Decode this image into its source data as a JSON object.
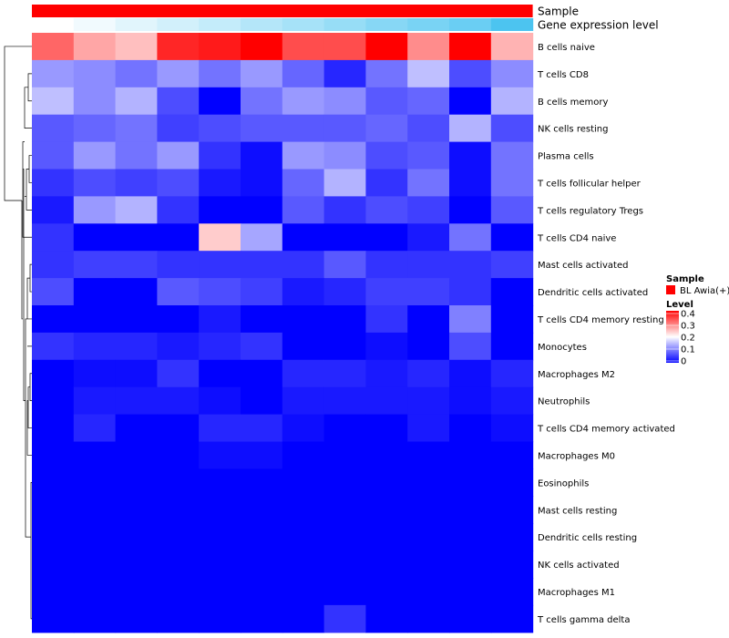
{
  "chart_data": {
    "type": "heatmap",
    "annotations": [
      {
        "label": "Sample",
        "color": "#ff0000"
      },
      {
        "label": "Gene expression level",
        "gradient_from": "#ffffff",
        "gradient_to": "#4cc4f0"
      }
    ],
    "legend": {
      "placement": "right",
      "sample_title": "Sample",
      "sample_entry": "BL Awia(+)",
      "sample_color": "#ff0000",
      "level_title": "Level",
      "level_ticks": [
        "0.4",
        "0.3",
        "0.2",
        "0.1",
        "0"
      ],
      "level_tick_values": [
        0.4,
        0.3,
        0.2,
        0.1,
        0
      ],
      "range": [
        0,
        0.4
      ]
    },
    "colors": {
      "low": "#0000ff",
      "mid": "#ffffff",
      "high": "#ff0000"
    },
    "rows": [
      "B cells naive",
      "T cells CD8",
      "B cells memory",
      "NK cells resting",
      "Plasma cells",
      "T cells follicular helper",
      "T cells regulatory  Tregs",
      "T cells CD4 naive",
      "Mast cells activated",
      "Dendritic cells activated",
      "T cells CD4 memory resting",
      "Monocytes",
      "Macrophages M2",
      "Neutrophils",
      "T cells CD4 memory activated",
      "Macrophages M0",
      "Eosinophils",
      "Mast cells resting",
      "Dendritic cells resting",
      "NK cells activated",
      "Macrophages M1",
      "T cells gamma delta"
    ],
    "values": [
      [
        0.32,
        0.27,
        0.25,
        0.37,
        0.38,
        0.4,
        0.34,
        0.34,
        0.4,
        0.29,
        0.4,
        0.26
      ],
      [
        0.12,
        0.11,
        0.09,
        0.12,
        0.09,
        0.12,
        0.08,
        0.03,
        0.09,
        0.15,
        0.06,
        0.11
      ],
      [
        0.15,
        0.11,
        0.14,
        0.06,
        0.0,
        0.09,
        0.12,
        0.11,
        0.07,
        0.08,
        0.0,
        0.14
      ],
      [
        0.07,
        0.08,
        0.09,
        0.05,
        0.06,
        0.07,
        0.07,
        0.07,
        0.08,
        0.06,
        0.14,
        0.06
      ],
      [
        0.07,
        0.12,
        0.09,
        0.12,
        0.04,
        0.01,
        0.12,
        0.11,
        0.06,
        0.07,
        0.01,
        0.09
      ],
      [
        0.04,
        0.06,
        0.05,
        0.06,
        0.02,
        0.01,
        0.08,
        0.14,
        0.04,
        0.09,
        0.01,
        0.09
      ],
      [
        0.02,
        0.12,
        0.14,
        0.04,
        0.0,
        0.0,
        0.07,
        0.04,
        0.06,
        0.05,
        0.0,
        0.07
      ],
      [
        0.04,
        0.0,
        0.0,
        0.0,
        0.24,
        0.13,
        0.0,
        0.0,
        0.0,
        0.02,
        0.09,
        0.0
      ],
      [
        0.04,
        0.05,
        0.05,
        0.04,
        0.04,
        0.04,
        0.04,
        0.07,
        0.04,
        0.04,
        0.04,
        0.05
      ],
      [
        0.06,
        0.0,
        0.0,
        0.07,
        0.06,
        0.05,
        0.02,
        0.03,
        0.05,
        0.05,
        0.04,
        0.0
      ],
      [
        0.0,
        0.0,
        0.0,
        0.0,
        0.02,
        0.0,
        0.0,
        0.0,
        0.04,
        0.0,
        0.1,
        0.0
      ],
      [
        0.04,
        0.03,
        0.03,
        0.02,
        0.03,
        0.04,
        0.0,
        0.0,
        0.01,
        0.0,
        0.06,
        0.0
      ],
      [
        0.0,
        0.01,
        0.01,
        0.04,
        0.0,
        0.0,
        0.03,
        0.03,
        0.02,
        0.03,
        0.01,
        0.03
      ],
      [
        0.0,
        0.02,
        0.02,
        0.02,
        0.01,
        0.0,
        0.02,
        0.02,
        0.02,
        0.02,
        0.01,
        0.02
      ],
      [
        0.0,
        0.03,
        0.0,
        0.0,
        0.03,
        0.03,
        0.01,
        0.0,
        0.0,
        0.02,
        0.0,
        0.01
      ],
      [
        0.0,
        0.0,
        0.0,
        0.0,
        0.01,
        0.01,
        0.0,
        0.0,
        0.0,
        0.0,
        0.0,
        0.0
      ],
      [
        0.0,
        0.0,
        0.0,
        0.0,
        0.0,
        0.0,
        0.0,
        0.0,
        0.0,
        0.0,
        0.0,
        0.0
      ],
      [
        0.0,
        0.0,
        0.0,
        0.0,
        0.0,
        0.0,
        0.0,
        0.0,
        0.0,
        0.0,
        0.0,
        0.0
      ],
      [
        0.0,
        0.0,
        0.0,
        0.0,
        0.0,
        0.0,
        0.0,
        0.0,
        0.0,
        0.0,
        0.0,
        0.0
      ],
      [
        0.0,
        0.0,
        0.0,
        0.0,
        0.0,
        0.0,
        0.0,
        0.0,
        0.0,
        0.0,
        0.0,
        0.0
      ],
      [
        0.0,
        0.0,
        0.0,
        0.0,
        0.0,
        0.0,
        0.0,
        0.0,
        0.0,
        0.0,
        0.0,
        0.0
      ],
      [
        0.0,
        0.0,
        0.0,
        0.0,
        0.0,
        0.0,
        0.0,
        0.04,
        0.0,
        0.0,
        0.0,
        0.0
      ]
    ],
    "column_count": 12,
    "expression_level_fraction": [
      0.0,
      0.08,
      0.17,
      0.25,
      0.33,
      0.42,
      0.5,
      0.58,
      0.67,
      0.75,
      0.83,
      1.0
    ]
  }
}
